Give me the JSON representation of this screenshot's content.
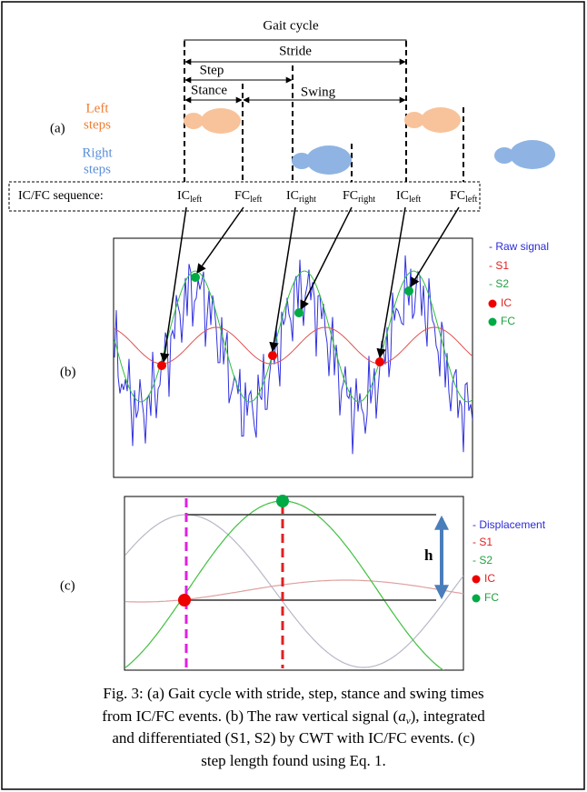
{
  "panel_a": {
    "label": "(a)",
    "gait_cycle": "Gait cycle",
    "stride": "Stride",
    "step": "Step",
    "stance": "Stance",
    "swing": "Swing",
    "left_steps": [
      "Left",
      "steps"
    ],
    "right_steps": [
      "Right",
      "steps"
    ],
    "sequence_label": "IC/FC sequence:",
    "sequence": [
      {
        "main": "IC",
        "sub": "left"
      },
      {
        "main": "FC",
        "sub": "left"
      },
      {
        "main": "IC",
        "sub": "right"
      },
      {
        "main": "FC",
        "sub": "right"
      },
      {
        "main": "IC",
        "sub": "left"
      },
      {
        "main": "FC",
        "sub": "left"
      }
    ]
  },
  "panel_b": {
    "label": "(b)",
    "legend": [
      "- Raw signal",
      "- S1",
      "- S2",
      "IC",
      "FC"
    ]
  },
  "panel_c": {
    "label": "(c)",
    "h": "h",
    "legend": [
      "- Displacement",
      "- S1",
      "- S2",
      "IC",
      "FC"
    ]
  },
  "caption": {
    "line1": "Fig. 3: (a) Gait cycle with stride, step, stance and swing times",
    "line2": {
      "before": "from IC/FC events. (b) The raw vertical signal (",
      "var": "a",
      "sub": "v",
      "after": "), integrated"
    },
    "line3": "and differentiated (S1, S2) by CWT with IC/FC events. (c)",
    "line4": "step length found using Eq. 1."
  }
}
